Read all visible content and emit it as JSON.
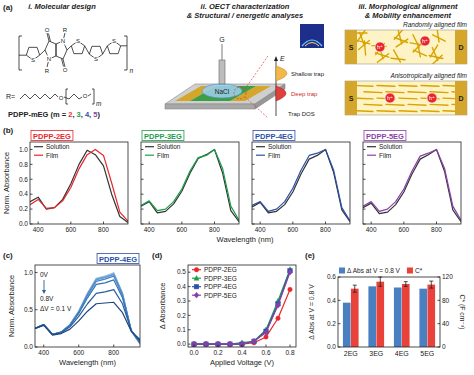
{
  "panel_labels": [
    "(a)",
    "(b)",
    "(c)",
    "(d)",
    "(e)"
  ],
  "diagram": {
    "headers": [
      [
        "i. Molecular design"
      ],
      [
        "ii. OECT characterization",
        "& Structural / energetic analyses"
      ],
      [
        "iii. Morphological alignment",
        "& Mobility enhancement"
      ]
    ],
    "molecule": {
      "label_parts": [
        {
          "text": "PDPP-mEG (m = ",
          "color": "#222222"
        },
        {
          "text": "2",
          "color": "#e8262b"
        },
        {
          "text": ", ",
          "color": "#222222"
        },
        {
          "text": "3",
          "color": "#1b9e4b"
        },
        {
          "text": ", ",
          "color": "#222222"
        },
        {
          "text": "4",
          "color": "#2b50a8"
        },
        {
          "text": ", ",
          "color": "#222222"
        },
        {
          "text": "5",
          "color": "#8a3fa8"
        },
        {
          "text": ")",
          "color": "#222222"
        }
      ],
      "substituent": "R",
      "nitrogen": "N",
      "oxygen": "O",
      "sulfur": "S",
      "repeat": "n",
      "r_definition": "R=",
      "chain_atom": "O",
      "chain_repeat": "m"
    },
    "device": {
      "gate": "G",
      "electrolyte": "NaCl",
      "energy_axis": "E",
      "shallow": "Shallow trap",
      "deep": "Deep trap",
      "dos": "Trap DOS"
    },
    "films": {
      "labels": [
        "Randomly aligned film",
        "Anisotropically aligned film"
      ],
      "source": "S",
      "drain": "D",
      "carrier": "h⁺"
    }
  },
  "chart_data": [
    {
      "type": "line",
      "title": "PDPP-2EG",
      "color": "#e8262b",
      "xlabel": "Wavelength (nm)",
      "ylabel": "Norm. Absorbance",
      "x": [
        350,
        400,
        450,
        500,
        550,
        600,
        650,
        700,
        750,
        800,
        850,
        900,
        950
      ],
      "xlim": [
        350,
        950
      ],
      "xticks": [
        400,
        600,
        800
      ],
      "ylim": [
        0,
        1.1
      ],
      "yticks": [
        {
          "value": 0,
          "label": "0.0"
        },
        {
          "value": 0.2,
          "label": "0.2"
        },
        {
          "value": 0.4,
          "label": "0.4"
        },
        {
          "value": 0.6,
          "label": "0.6"
        },
        {
          "value": 0.8,
          "label": "0.8"
        },
        {
          "value": 1,
          "label": "1.0"
        }
      ],
      "legend": "upper left",
      "series": [
        {
          "name": "Solution",
          "color": "#333333",
          "values": [
            0.3,
            0.36,
            0.2,
            0.22,
            0.33,
            0.54,
            0.8,
            0.99,
            0.93,
            0.78,
            0.4,
            0.1,
            0.02
          ]
        },
        {
          "name": "Film",
          "color": "#e8262b",
          "values": [
            0.26,
            0.33,
            0.21,
            0.22,
            0.31,
            0.49,
            0.74,
            0.93,
            1.0,
            0.92,
            0.55,
            0.16,
            0.04
          ]
        }
      ]
    },
    {
      "type": "line",
      "title": "PDPP-3EG",
      "color": "#1b9e4b",
      "tick_labels": "x",
      "x": [
        350,
        400,
        450,
        500,
        550,
        600,
        650,
        700,
        750,
        800,
        850,
        900,
        950
      ],
      "xlim": [
        350,
        950
      ],
      "xticks": [
        400,
        600,
        800
      ],
      "ylim": [
        0,
        1.1
      ],
      "yticks": [
        0,
        0.2,
        0.4,
        0.6,
        0.8,
        1
      ],
      "legend": "upper left",
      "series": [
        {
          "name": "Solution",
          "color": "#333333",
          "values": [
            0.24,
            0.3,
            0.15,
            0.17,
            0.27,
            0.44,
            0.68,
            0.88,
            0.93,
            1.0,
            0.68,
            0.18,
            0.03
          ]
        },
        {
          "name": "Film",
          "color": "#1b9e4b",
          "values": [
            0.25,
            0.31,
            0.18,
            0.2,
            0.3,
            0.47,
            0.71,
            0.89,
            0.92,
            1.0,
            0.74,
            0.24,
            0.05
          ]
        }
      ]
    },
    {
      "type": "line",
      "title": "PDPP-4EG",
      "color": "#2b50a8",
      "tick_labels": "x",
      "x": [
        350,
        400,
        450,
        500,
        550,
        600,
        650,
        700,
        750,
        800,
        850,
        900,
        950
      ],
      "xlim": [
        350,
        950
      ],
      "xticks": [
        400,
        600,
        800
      ],
      "ylim": [
        0,
        1.1
      ],
      "yticks": [
        0,
        0.2,
        0.4,
        0.6,
        0.8,
        1
      ],
      "legend": "upper left",
      "series": [
        {
          "name": "Solution",
          "color": "#333333",
          "values": [
            0.23,
            0.29,
            0.15,
            0.17,
            0.26,
            0.43,
            0.67,
            0.87,
            0.92,
            1.0,
            0.69,
            0.19,
            0.03
          ]
        },
        {
          "name": "Film",
          "color": "#2b50a8",
          "values": [
            0.25,
            0.3,
            0.17,
            0.2,
            0.3,
            0.48,
            0.72,
            0.92,
            0.95,
            1.0,
            0.72,
            0.22,
            0.04
          ]
        }
      ]
    },
    {
      "type": "line",
      "title": "PDPP-5EG",
      "color": "#8a3fa8",
      "tick_labels": "x",
      "x": [
        350,
        400,
        450,
        500,
        550,
        600,
        650,
        700,
        750,
        800,
        850,
        900,
        950
      ],
      "xlim": [
        350,
        950
      ],
      "xticks": [
        400,
        600,
        800
      ],
      "ylim": [
        0,
        1.1
      ],
      "yticks": [
        0,
        0.2,
        0.4,
        0.6,
        0.8,
        1
      ],
      "legend": "upper left",
      "series": [
        {
          "name": "Solution",
          "color": "#333333",
          "values": [
            0.22,
            0.28,
            0.14,
            0.16,
            0.26,
            0.43,
            0.67,
            0.87,
            0.93,
            1.0,
            0.7,
            0.19,
            0.03
          ]
        },
        {
          "name": "Film",
          "color": "#8a3fa8",
          "values": [
            0.24,
            0.3,
            0.17,
            0.2,
            0.3,
            0.47,
            0.71,
            0.91,
            0.95,
            1.0,
            0.74,
            0.24,
            0.05
          ]
        }
      ]
    },
    {
      "type": "line",
      "title": "PDPP-4EG",
      "color": "#2b50a8",
      "xlabel": "Wavelength (nm)",
      "ylabel": "Norm. Absorbance",
      "annotations": [
        "0V",
        "0.8V",
        "ΔV = 0.1 V"
      ],
      "x": [
        350,
        400,
        450,
        500,
        550,
        600,
        650,
        700,
        750,
        800,
        850,
        900,
        950
      ],
      "xlim": [
        350,
        950
      ],
      "xticks": [
        400,
        600,
        800
      ],
      "ylim": [
        0,
        1.1
      ],
      "yticks": [
        {
          "value": 0,
          "label": "0.0"
        },
        {
          "value": 0.5,
          "label": "0.5"
        },
        {
          "value": 1,
          "label": "1.0"
        }
      ],
      "series": [
        {
          "color": "#b9d7ee",
          "values": [
            0.25,
            0.3,
            0.17,
            0.2,
            0.3,
            0.48,
            0.72,
            0.92,
            0.95,
            1.0,
            0.72,
            0.22,
            0.04
          ]
        },
        {
          "color": "#a3c8e8",
          "values": [
            0.25,
            0.3,
            0.17,
            0.2,
            0.3,
            0.48,
            0.72,
            0.92,
            0.95,
            0.99,
            0.72,
            0.22,
            0.04
          ]
        },
        {
          "color": "#8cb9e1",
          "values": [
            0.25,
            0.3,
            0.17,
            0.2,
            0.3,
            0.48,
            0.72,
            0.91,
            0.94,
            0.99,
            0.72,
            0.22,
            0.04
          ]
        },
        {
          "color": "#75a9d9",
          "values": [
            0.25,
            0.3,
            0.17,
            0.2,
            0.3,
            0.48,
            0.71,
            0.91,
            0.94,
            0.98,
            0.71,
            0.22,
            0.04
          ]
        },
        {
          "color": "#5e98cf",
          "values": [
            0.25,
            0.3,
            0.17,
            0.2,
            0.3,
            0.47,
            0.71,
            0.9,
            0.93,
            0.97,
            0.71,
            0.22,
            0.05
          ]
        },
        {
          "color": "#4886c4",
          "values": [
            0.25,
            0.3,
            0.17,
            0.2,
            0.29,
            0.46,
            0.69,
            0.88,
            0.91,
            0.95,
            0.69,
            0.22,
            0.05
          ]
        },
        {
          "color": "#3673b5",
          "values": [
            0.25,
            0.3,
            0.17,
            0.2,
            0.29,
            0.45,
            0.66,
            0.84,
            0.86,
            0.9,
            0.66,
            0.22,
            0.06
          ]
        },
        {
          "color": "#2a5d9e",
          "values": [
            0.25,
            0.3,
            0.17,
            0.19,
            0.27,
            0.41,
            0.58,
            0.72,
            0.74,
            0.77,
            0.58,
            0.22,
            0.08
          ]
        },
        {
          "color": "#1f467f",
          "values": [
            0.25,
            0.29,
            0.16,
            0.18,
            0.24,
            0.35,
            0.48,
            0.58,
            0.59,
            0.6,
            0.46,
            0.21,
            0.1
          ]
        }
      ]
    },
    {
      "type": "line",
      "xlabel": "Applied Voltage (V)",
      "ylabel": "Δ Absorbance",
      "x": [
        0,
        0.1,
        0.2,
        0.3,
        0.4,
        0.5,
        0.6,
        0.7,
        0.8
      ],
      "xlim": [
        -0.05,
        0.85
      ],
      "xticks": [
        {
          "value": 0,
          "label": "0.0"
        },
        {
          "value": 0.2,
          "label": "0.2"
        },
        {
          "value": 0.4,
          "label": "0.4"
        },
        {
          "value": 0.6,
          "label": "0.6"
        },
        {
          "value": 0.8,
          "label": "0.8"
        }
      ],
      "ylim": [
        -0.02,
        0.55
      ],
      "yticks": [
        {
          "value": 0,
          "label": "0.0"
        },
        {
          "value": 0.1,
          "label": "0.1"
        },
        {
          "value": 0.2,
          "label": "0.2"
        },
        {
          "value": 0.3,
          "label": "0.3"
        },
        {
          "value": 0.4,
          "label": "0.4"
        },
        {
          "value": 0.5,
          "label": "0.5"
        }
      ],
      "legend": "upper left",
      "series": [
        {
          "name": "PDPP-2EG",
          "color": "#e8262b",
          "marker": "circle",
          "values": [
            0,
            0,
            0,
            0,
            0,
            0.01,
            0.05,
            0.18,
            0.38
          ]
        },
        {
          "name": "PDPP-3EG",
          "color": "#1b9e4b",
          "marker": "triangle",
          "values": [
            0,
            0,
            0,
            0,
            0.01,
            0.02,
            0.1,
            0.3,
            0.52
          ]
        },
        {
          "name": "PDPP-4EG",
          "color": "#2b50a8",
          "marker": "square",
          "values": [
            0,
            0,
            0,
            0,
            0,
            0.02,
            0.09,
            0.28,
            0.51
          ]
        },
        {
          "name": "PDPP-5EG",
          "color": "#8a3fa8",
          "marker": "diamond",
          "values": [
            0,
            0,
            0,
            0,
            0,
            0.02,
            0.08,
            0.27,
            0.5
          ]
        }
      ]
    },
    {
      "type": "bar",
      "ylabel": "Δ Abs at V = 0.8 V",
      "y2label": "C* (F cm⁻³)",
      "categories": [
        "2EG",
        "3EG",
        "4EG",
        "5EG"
      ],
      "ylim": [
        0,
        0.6
      ],
      "yticks": [
        {
          "value": 0,
          "label": "0.0"
        },
        {
          "value": 0.2,
          "label": "0.2"
        },
        {
          "value": 0.4,
          "label": "0.4"
        },
        {
          "value": 0.6,
          "label": "0.6"
        }
      ],
      "y2lim": [
        0,
        120
      ],
      "y2ticks": [
        0,
        40,
        80,
        120
      ],
      "legend": "top",
      "series": [
        {
          "name": "Δ Abs at V = 0.8 V",
          "color": "#4a7fc1",
          "values": [
            0.38,
            0.52,
            0.51,
            0.5
          ]
        },
        {
          "name": "C*",
          "color": "#e8423a",
          "axis": "y2",
          "values": [
            100,
            112,
            108,
            107
          ],
          "errors": [
            6,
            8,
            4,
            6
          ]
        }
      ]
    }
  ]
}
